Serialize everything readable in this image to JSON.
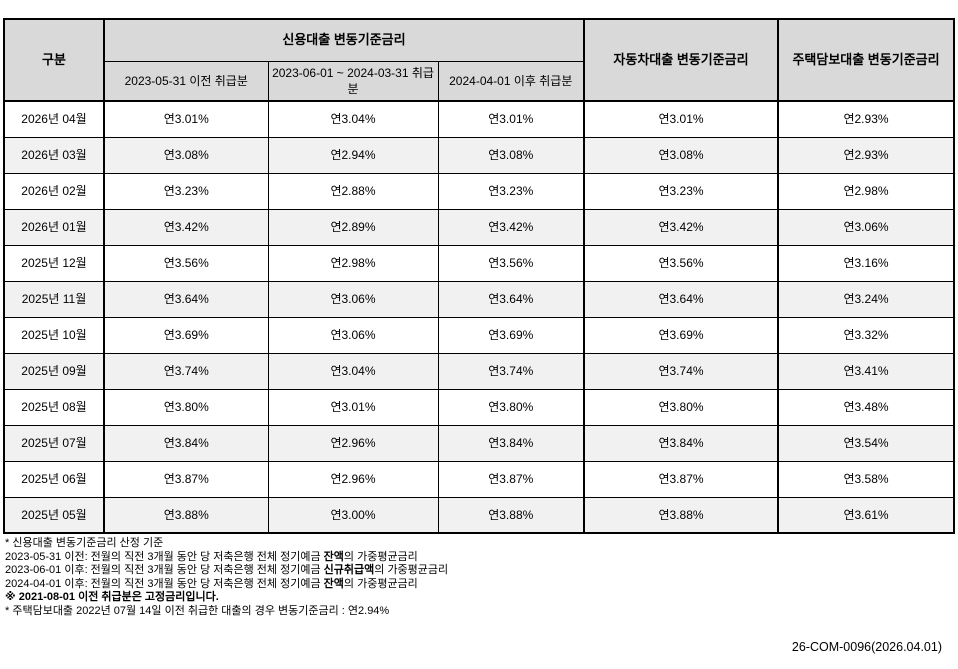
{
  "table": {
    "header": {
      "category": "구분",
      "credit_group": "신용대출 변동기준금리",
      "credit_sub": [
        "2023-05-31 이전 취급분",
        "2023-06-01 ~ 2024-03-31 취급분",
        "2024-04-01 이후 취급분"
      ],
      "auto": "자동차대출 변동기준금리",
      "mortgage": "주택담보대출 변동기준금리"
    },
    "rows": [
      {
        "month": "2026년 04월",
        "rates": [
          "연3.01%",
          "연3.04%",
          "연3.01%",
          "연3.01%",
          "연2.93%"
        ]
      },
      {
        "month": "2026년 03월",
        "rates": [
          "연3.08%",
          "연2.94%",
          "연3.08%",
          "연3.08%",
          "연2.93%"
        ]
      },
      {
        "month": "2026년 02월",
        "rates": [
          "연3.23%",
          "연2.88%",
          "연3.23%",
          "연3.23%",
          "연2.98%"
        ]
      },
      {
        "month": "2026년 01월",
        "rates": [
          "연3.42%",
          "연2.89%",
          "연3.42%",
          "연3.42%",
          "연3.06%"
        ]
      },
      {
        "month": "2025년 12월",
        "rates": [
          "연3.56%",
          "연2.98%",
          "연3.56%",
          "연3.56%",
          "연3.16%"
        ]
      },
      {
        "month": "2025년 11월",
        "rates": [
          "연3.64%",
          "연3.06%",
          "연3.64%",
          "연3.64%",
          "연3.24%"
        ]
      },
      {
        "month": "2025년 10월",
        "rates": [
          "연3.69%",
          "연3.06%",
          "연3.69%",
          "연3.69%",
          "연3.32%"
        ]
      },
      {
        "month": "2025년 09월",
        "rates": [
          "연3.74%",
          "연3.04%",
          "연3.74%",
          "연3.74%",
          "연3.41%"
        ]
      },
      {
        "month": "2025년 08월",
        "rates": [
          "연3.80%",
          "연3.01%",
          "연3.80%",
          "연3.80%",
          "연3.48%"
        ]
      },
      {
        "month": "2025년 07월",
        "rates": [
          "연3.84%",
          "연2.96%",
          "연3.84%",
          "연3.84%",
          "연3.54%"
        ]
      },
      {
        "month": "2025년 06월",
        "rates": [
          "연3.87%",
          "연2.96%",
          "연3.87%",
          "연3.87%",
          "연3.58%"
        ]
      },
      {
        "month": "2025년 05월",
        "rates": [
          "연3.88%",
          "연3.00%",
          "연3.88%",
          "연3.88%",
          "연3.61%"
        ]
      }
    ]
  },
  "footnotes": [
    [
      {
        "t": "* 신용대출 변동기준금리 산정 기준",
        "b": false
      }
    ],
    [
      {
        "t": "2023-05-31 이전: 전월의 직전 3개월 동안 당 저축은행 전체 정기예금 ",
        "b": false
      },
      {
        "t": "잔액",
        "b": true
      },
      {
        "t": "의 가중평균금리",
        "b": false
      }
    ],
    [
      {
        "t": "2023-06-01 이후: 전월의 직전 3개월 동안 당 저축은행 전체 정기예금 ",
        "b": false
      },
      {
        "t": "신규취급액",
        "b": true
      },
      {
        "t": "의 가중평균금리",
        "b": false
      }
    ],
    [
      {
        "t": "2024-04-01 이후: 전월의 직전 3개월 동안 당 저축은행 전체 정기예금 ",
        "b": false
      },
      {
        "t": "잔액",
        "b": true
      },
      {
        "t": "의 가중평균금리",
        "b": false
      }
    ],
    [
      {
        "t": "※ 2021-08-01 이전 취급분은 고정금리입니다.",
        "b": true
      }
    ],
    [
      {
        "t": "* 주택담보대출 2022년 07월 14일 이전 취급한 대출의 경우 변동기준금리 : 연2.94%",
        "b": false
      }
    ]
  ],
  "doc_ref": "26-COM-0096(2026.04.01)",
  "colors": {
    "header_bg": "#d9d9d9",
    "stripe_bg": "#f1f1f1",
    "border": "#000000"
  }
}
